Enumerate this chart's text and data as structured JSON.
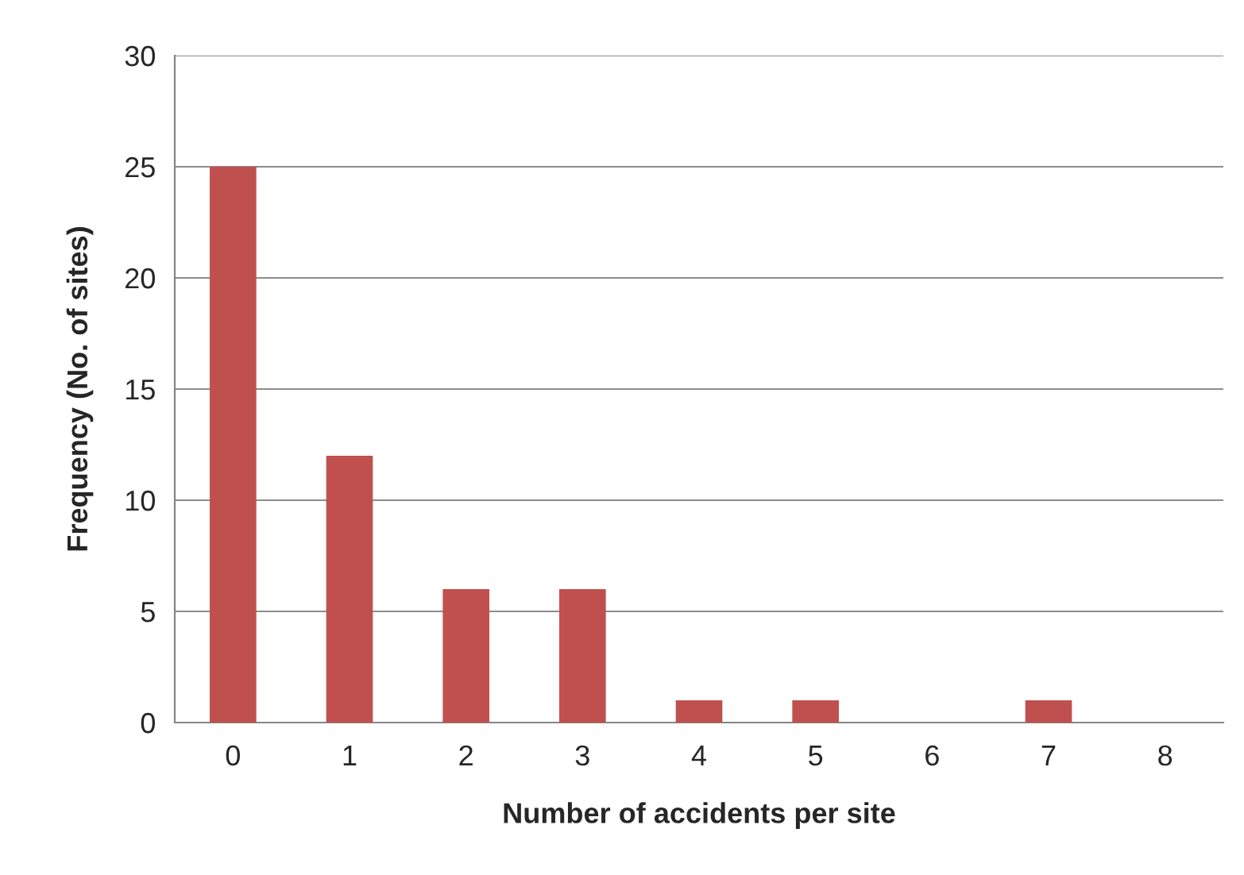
{
  "chart_data": {
    "type": "bar",
    "xlabel": "Number of accidents per site",
    "ylabel": "Frequency (No. of sites)",
    "categories": [
      "0",
      "1",
      "2",
      "3",
      "4",
      "5",
      "6",
      "7",
      "8"
    ],
    "values": [
      25,
      12,
      6,
      6,
      1,
      1,
      0,
      1,
      0
    ],
    "color": "#c0504d",
    "ylim": [
      0,
      30
    ],
    "yticks": [
      0,
      5,
      10,
      15,
      20,
      25,
      30
    ],
    "grid": "y",
    "legend": false
  }
}
